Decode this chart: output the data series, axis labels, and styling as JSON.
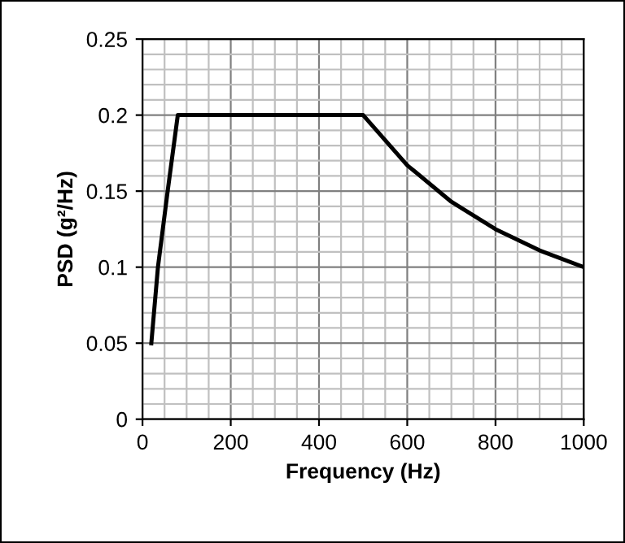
{
  "chart_data": {
    "type": "line",
    "xlabel": "Frequency (Hz)",
    "ylabel": "PSD (g²/Hz)",
    "series": [
      {
        "color": "#000000",
        "x": [
          20,
          35,
          57,
          80,
          500,
          600,
          700,
          800,
          900,
          1000
        ],
        "values": [
          0.05,
          0.1,
          0.15,
          0.2,
          0.2,
          0.167,
          0.143,
          0.125,
          0.111,
          0.1
        ]
      }
    ],
    "xlim": [
      0,
      1000
    ],
    "ylim": [
      0,
      0.25
    ],
    "xticks": [
      0,
      {
        "value": 50,
        "label": null
      },
      {
        "value": 100,
        "label": null
      },
      {
        "value": 150,
        "label": null
      },
      200,
      {
        "value": 250,
        "label": null
      },
      {
        "value": 300,
        "label": null
      },
      {
        "value": 350,
        "label": null
      },
      400,
      {
        "value": 450,
        "label": null
      },
      {
        "value": 500,
        "label": null
      },
      {
        "value": 550,
        "label": null
      },
      600,
      {
        "value": 650,
        "label": null
      },
      {
        "value": 700,
        "label": null
      },
      {
        "value": 750,
        "label": null
      },
      800,
      {
        "value": 850,
        "label": null
      },
      {
        "value": 900,
        "label": null
      },
      {
        "value": 950,
        "label": null
      },
      1000
    ],
    "yticks": [
      0,
      {
        "value": 0.01,
        "label": null
      },
      {
        "value": 0.02,
        "label": null
      },
      {
        "value": 0.03,
        "label": null
      },
      {
        "value": 0.04,
        "label": null
      },
      0.05,
      {
        "value": 0.06,
        "label": null
      },
      {
        "value": 0.07,
        "label": null
      },
      {
        "value": 0.08,
        "label": null
      },
      {
        "value": 0.09,
        "label": null
      },
      0.1,
      {
        "value": 0.11,
        "label": null
      },
      {
        "value": 0.12,
        "label": null
      },
      {
        "value": 0.13,
        "label": null
      },
      {
        "value": 0.14,
        "label": null
      },
      0.15,
      {
        "value": 0.16,
        "label": null
      },
      {
        "value": 0.17,
        "label": null
      },
      {
        "value": 0.18,
        "label": null
      },
      {
        "value": 0.19,
        "label": null
      },
      0.2,
      {
        "value": 0.21,
        "label": null
      },
      {
        "value": 0.22,
        "label": null
      },
      {
        "value": 0.23,
        "label": null
      },
      {
        "value": 0.24,
        "label": null
      },
      0.25
    ],
    "grid": true,
    "marker": "none",
    "line_style": "solid"
  }
}
